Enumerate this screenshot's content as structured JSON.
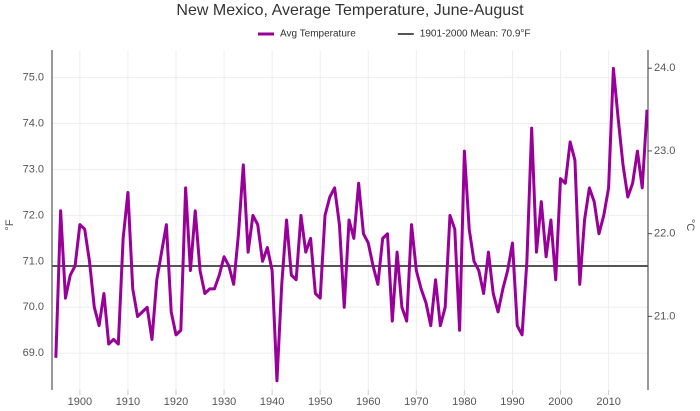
{
  "chart_data": {
    "type": "line",
    "title": "New Mexico, Average Temperature, June-August",
    "y_label": "°F",
    "y2_label": "°C",
    "x": [
      1895,
      1896,
      1897,
      1898,
      1899,
      1900,
      1901,
      1902,
      1903,
      1904,
      1905,
      1906,
      1907,
      1908,
      1909,
      1910,
      1911,
      1912,
      1913,
      1914,
      1915,
      1916,
      1917,
      1918,
      1919,
      1920,
      1921,
      1922,
      1923,
      1924,
      1925,
      1926,
      1927,
      1928,
      1929,
      1930,
      1931,
      1932,
      1933,
      1934,
      1935,
      1936,
      1937,
      1938,
      1939,
      1940,
      1941,
      1942,
      1943,
      1944,
      1945,
      1946,
      1947,
      1948,
      1949,
      1950,
      1951,
      1952,
      1953,
      1954,
      1955,
      1956,
      1957,
      1958,
      1959,
      1960,
      1961,
      1962,
      1963,
      1964,
      1965,
      1966,
      1967,
      1968,
      1969,
      1970,
      1971,
      1972,
      1973,
      1974,
      1975,
      1976,
      1977,
      1978,
      1979,
      1980,
      1981,
      1982,
      1983,
      1984,
      1985,
      1986,
      1987,
      1988,
      1989,
      1990,
      1991,
      1992,
      1993,
      1994,
      1995,
      1996,
      1997,
      1998,
      1999,
      2000,
      2001,
      2002,
      2003,
      2004,
      2005,
      2006,
      2007,
      2008,
      2009,
      2010,
      2011,
      2012,
      2013,
      2014,
      2015,
      2016,
      2017,
      2018
    ],
    "series": [
      {
        "name": "Avg Temperature",
        "color": "#990099",
        "values": [
          68.9,
          72.1,
          70.2,
          70.7,
          70.9,
          71.8,
          71.7,
          71.0,
          70.0,
          69.6,
          70.3,
          69.2,
          69.3,
          69.2,
          71.5,
          72.5,
          70.4,
          69.8,
          69.9,
          70.0,
          69.3,
          70.6,
          71.2,
          71.8,
          69.9,
          69.4,
          69.5,
          72.6,
          70.8,
          72.1,
          70.8,
          70.3,
          70.4,
          70.4,
          70.7,
          71.1,
          70.9,
          70.5,
          71.6,
          73.1,
          71.2,
          72.0,
          71.8,
          71.0,
          71.3,
          70.8,
          68.4,
          70.5,
          71.9,
          70.7,
          70.6,
          72.0,
          71.2,
          71.5,
          70.3,
          70.2,
          72.0,
          72.4,
          72.6,
          71.8,
          70.0,
          71.9,
          71.5,
          72.7,
          71.6,
          71.4,
          70.9,
          70.5,
          71.5,
          71.6,
          69.7,
          71.2,
          70.0,
          69.7,
          71.8,
          70.8,
          70.4,
          70.1,
          69.6,
          70.6,
          69.6,
          70.0,
          72.0,
          71.7,
          69.5,
          73.4,
          71.7,
          71.0,
          70.8,
          70.3,
          71.2,
          70.3,
          69.9,
          70.4,
          70.8,
          71.4,
          69.6,
          69.4,
          71.0,
          73.9,
          71.2,
          72.3,
          71.1,
          71.9,
          70.6,
          72.8,
          72.7,
          73.6,
          73.2,
          70.5,
          71.9,
          72.6,
          72.3,
          71.6,
          72.0,
          72.6,
          75.2,
          74.1,
          73.1,
          72.4,
          72.7,
          73.4,
          72.6,
          74.3
        ]
      }
    ],
    "mean": {
      "name": "1901-2000 Mean: 70.9°F",
      "value": 70.9,
      "color": "#555555"
    },
    "xlim": [
      1894.2,
      2018.2
    ],
    "xticks": [
      1900,
      1910,
      1920,
      1930,
      1940,
      1950,
      1960,
      1970,
      1980,
      1990,
      2000,
      2010
    ],
    "ylim": [
      68.2,
      75.6
    ],
    "yticks": [
      {
        "value": 69,
        "label": "69.0"
      },
      {
        "value": 70,
        "label": "70.0"
      },
      {
        "value": 71,
        "label": "71.0"
      },
      {
        "value": 72,
        "label": "72.0"
      },
      {
        "value": 73,
        "label": "73.0"
      },
      {
        "value": 74,
        "label": "74.0"
      },
      {
        "value": 75,
        "label": "75.0"
      }
    ],
    "y2lim": [
      20.11,
      24.22
    ],
    "y2ticks": [
      {
        "value": 21,
        "label": "21.0"
      },
      {
        "value": 22,
        "label": "22.0"
      },
      {
        "value": 23,
        "label": "23.0"
      },
      {
        "value": 24,
        "label": "24.0"
      }
    ],
    "grid": true
  }
}
